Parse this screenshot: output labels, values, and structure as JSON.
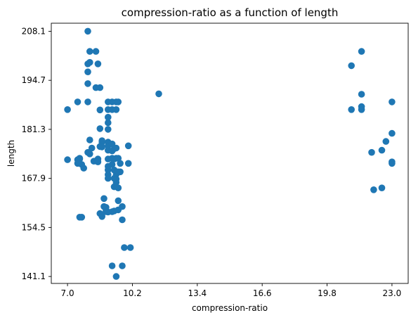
{
  "chart_data": {
    "type": "scatter",
    "title": "compression-ratio as a function of length",
    "xlabel": "compression-ratio",
    "ylabel": "length",
    "xlim": [
      6.2,
      23.8
    ],
    "ylim": [
      139.2,
      210.3
    ],
    "x_ticks": [
      "7.0",
      "10.2",
      "13.4",
      "16.6",
      "19.8",
      "23.0"
    ],
    "y_ticks": [
      "141.1",
      "154.5",
      "167.9",
      "181.3",
      "194.7",
      "208.1"
    ],
    "colors": {
      "points": "#1f77b4"
    },
    "series": [
      {
        "x": [
          7.0,
          7.0,
          7.5,
          7.5,
          7.6,
          7.7,
          7.6,
          7.6,
          7.7,
          7.5,
          7.8,
          8.0,
          8.1,
          8.0,
          8.1,
          8.1,
          8.0,
          8.2,
          8.3,
          8.0,
          8.0,
          8.0,
          8.1,
          8.4,
          8.4,
          8.5,
          8.6,
          8.6,
          8.5,
          8.5,
          8.6,
          8.7,
          8.7,
          8.8,
          8.8,
          8.9,
          8.9,
          8.7,
          8.7,
          8.6,
          8.6,
          9.0,
          9.0,
          9.0,
          9.0,
          9.0,
          9.0,
          9.0,
          9.0,
          9.0,
          9.0,
          9.0,
          9.0,
          9.0,
          9.2,
          9.2,
          9.2,
          9.2,
          9.2,
          9.2,
          9.3,
          9.3,
          9.3,
          9.3,
          9.3,
          9.4,
          9.4,
          9.4,
          9.4,
          9.4,
          9.4,
          9.4,
          9.5,
          9.5,
          9.5,
          9.5,
          9.5,
          9.5,
          9.6,
          9.6,
          9.7,
          9.7,
          9.8,
          9.7,
          9.3,
          9.2,
          9.0,
          8.9,
          9.2,
          9.4,
          10.0,
          10.0,
          10.1,
          11.5,
          21.0,
          21.0,
          21.5,
          21.5,
          21.5,
          21.5,
          22.0,
          22.1,
          22.5,
          22.5,
          22.7,
          23.0,
          23.0,
          23.0,
          23.0
        ],
        "y": [
          173.0,
          186.7,
          188.8,
          173.0,
          173.4,
          171.7,
          173.2,
          157.3,
          157.3,
          172.0,
          170.7,
          208.1,
          202.6,
          199.2,
          199.6,
          178.4,
          197.0,
          176.2,
          172.6,
          193.8,
          188.8,
          175.0,
          174.6,
          192.7,
          202.6,
          199.2,
          192.7,
          186.6,
          173.2,
          172.4,
          176.6,
          178.2,
          177.8,
          162.4,
          160.2,
          159.1,
          160.0,
          157.5,
          176.5,
          181.5,
          158.3,
          188.8,
          186.7,
          184.6,
          183.1,
          181.3,
          177.8,
          176.8,
          175.6,
          173.2,
          171.2,
          170.2,
          168.9,
          167.9,
          188.8,
          186.7,
          177.3,
          175.4,
          173.4,
          171.7,
          176.0,
          173.2,
          170.2,
          167.9,
          165.6,
          188.8,
          186.7,
          176.2,
          173.4,
          169.0,
          167.7,
          166.8,
          188.8,
          173.4,
          169.7,
          165.3,
          161.8,
          159.3,
          172.0,
          169.7,
          160.2,
          156.6,
          149.0,
          144.0,
          159.0,
          158.8,
          158.7,
          158.8,
          144.0,
          141.1,
          176.8,
          172.0,
          149.0,
          191.0,
          198.7,
          186.7,
          202.6,
          190.9,
          187.5,
          186.7,
          175.0,
          164.8,
          175.6,
          165.3,
          178.0,
          188.8,
          180.2,
          172.4,
          172.0
        ]
      }
    ]
  }
}
